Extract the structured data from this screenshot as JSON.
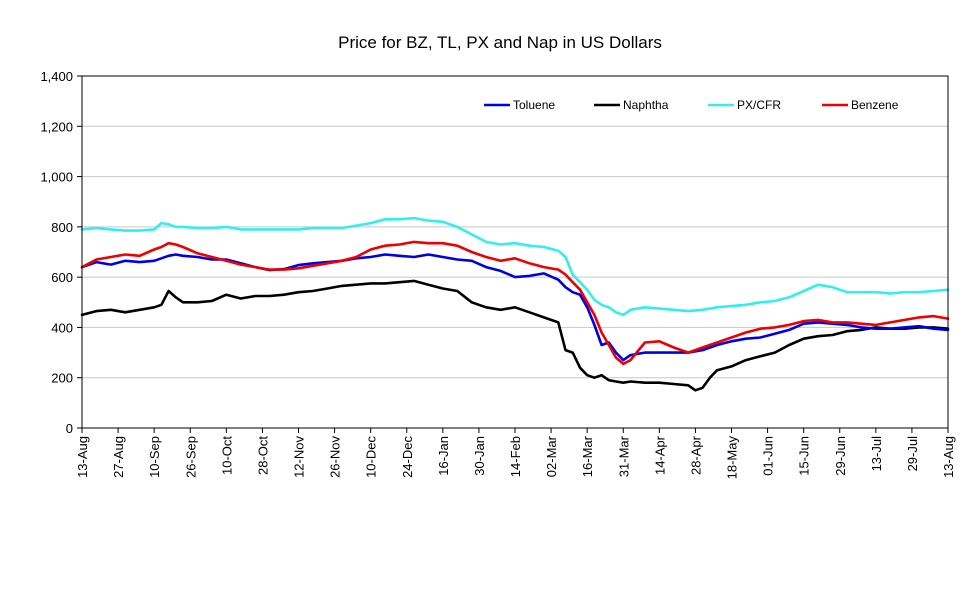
{
  "chart_data": {
    "type": "line",
    "title": "Price for BZ, TL, PX and Nap in US Dollars",
    "xlabel": "",
    "ylabel": "",
    "ylim": [
      0,
      1400
    ],
    "yticks": [
      "0",
      "200",
      "400",
      "600",
      "800",
      "1,000",
      "1,200",
      "1,400"
    ],
    "ytick_values": [
      0,
      200,
      400,
      600,
      800,
      1000,
      1200,
      1400
    ],
    "grid": true,
    "legend_position": "top-right",
    "x_tick_labels": [
      "13-Aug",
      "27-Aug",
      "10-Sep",
      "26-Sep",
      "10-Oct",
      "28-Oct",
      "12-Nov",
      "26-Nov",
      "10-Dec",
      "24-Dec",
      "16-Jan",
      "30-Jan",
      "14-Feb",
      "02-Mar",
      "16-Mar",
      "31-Mar",
      "14-Apr",
      "28-Apr",
      "18-May",
      "01-Jun",
      "15-Jun",
      "29-Jun",
      "13-Jul",
      "29-Jul",
      "13-Aug"
    ],
    "x": [
      0,
      10,
      20,
      30,
      40,
      50,
      60,
      70,
      80,
      90,
      100,
      110,
      120,
      130,
      140,
      150,
      160,
      170,
      180,
      190,
      200,
      210,
      220,
      230,
      240
    ],
    "series": [
      {
        "name": "Toluene",
        "color": "#0000e6",
        "x": [
          0,
          4,
          8,
          12,
          16,
          20,
          24,
          26,
          28,
          32,
          36,
          40,
          44,
          48,
          52,
          56,
          60,
          64,
          68,
          72,
          76,
          80,
          84,
          88,
          92,
          96,
          100,
          104,
          108,
          112,
          116,
          120,
          124,
          128,
          132,
          134,
          136,
          138,
          140,
          142,
          144,
          146,
          148,
          150,
          152,
          156,
          160,
          164,
          168,
          172,
          176,
          180,
          184,
          188,
          192,
          196,
          200,
          204,
          208,
          212,
          216,
          220,
          224,
          228,
          232,
          236,
          240
        ],
        "values": [
          640,
          660,
          650,
          665,
          660,
          665,
          685,
          690,
          685,
          680,
          670,
          670,
          655,
          640,
          628,
          632,
          648,
          655,
          660,
          665,
          675,
          680,
          690,
          685,
          680,
          690,
          680,
          670,
          665,
          640,
          625,
          600,
          605,
          615,
          590,
          560,
          540,
          530,
          480,
          410,
          330,
          340,
          300,
          270,
          290,
          300,
          300,
          300,
          300,
          310,
          330,
          345,
          355,
          360,
          375,
          390,
          415,
          420,
          415,
          410,
          400,
          395,
          395,
          400,
          405,
          395,
          390
        ]
      },
      {
        "name": "Naphtha",
        "color": "#000000",
        "x": [
          0,
          4,
          8,
          12,
          16,
          20,
          22,
          24,
          26,
          28,
          32,
          36,
          40,
          44,
          48,
          52,
          56,
          60,
          64,
          68,
          72,
          76,
          80,
          84,
          88,
          92,
          96,
          100,
          104,
          108,
          112,
          116,
          120,
          124,
          128,
          130,
          132,
          134,
          136,
          138,
          140,
          142,
          144,
          146,
          148,
          150,
          152,
          156,
          160,
          164,
          168,
          170,
          172,
          174,
          176,
          180,
          184,
          188,
          192,
          196,
          200,
          204,
          208,
          212,
          216,
          220,
          224,
          228,
          232,
          236,
          240
        ],
        "values": [
          450,
          465,
          470,
          460,
          470,
          480,
          490,
          545,
          520,
          500,
          500,
          505,
          530,
          515,
          525,
          525,
          530,
          540,
          545,
          555,
          565,
          570,
          575,
          575,
          580,
          585,
          570,
          555,
          545,
          500,
          480,
          470,
          480,
          460,
          440,
          430,
          420,
          310,
          300,
          240,
          210,
          200,
          210,
          190,
          185,
          180,
          185,
          180,
          180,
          175,
          170,
          150,
          160,
          200,
          230,
          245,
          270,
          285,
          300,
          330,
          355,
          365,
          370,
          385,
          390,
          400,
          395,
          395,
          400,
          400,
          395
        ]
      },
      {
        "name": "PX/CFR",
        "color": "#33eeee",
        "x": [
          0,
          4,
          8,
          12,
          16,
          20,
          22,
          24,
          26,
          28,
          32,
          36,
          40,
          44,
          48,
          52,
          56,
          60,
          64,
          68,
          72,
          76,
          80,
          84,
          88,
          92,
          96,
          100,
          104,
          108,
          112,
          116,
          120,
          124,
          128,
          132,
          134,
          136,
          138,
          140,
          142,
          144,
          146,
          148,
          150,
          152,
          156,
          160,
          164,
          168,
          172,
          176,
          180,
          184,
          188,
          192,
          196,
          200,
          204,
          208,
          212,
          216,
          220,
          224,
          228,
          232,
          236,
          240
        ],
        "values": [
          790,
          795,
          790,
          785,
          785,
          790,
          815,
          810,
          800,
          800,
          795,
          795,
          800,
          790,
          790,
          790,
          790,
          790,
          795,
          795,
          795,
          805,
          815,
          830,
          830,
          835,
          825,
          820,
          800,
          770,
          740,
          730,
          735,
          725,
          720,
          705,
          680,
          610,
          580,
          550,
          510,
          490,
          480,
          460,
          450,
          470,
          480,
          475,
          470,
          465,
          470,
          480,
          485,
          490,
          500,
          505,
          520,
          545,
          570,
          560,
          540,
          540,
          540,
          535,
          540,
          540,
          545,
          550
        ]
      },
      {
        "name": "Benzene",
        "color": "#ee0000",
        "x": [
          0,
          4,
          8,
          12,
          16,
          20,
          22,
          24,
          26,
          28,
          32,
          36,
          40,
          44,
          48,
          52,
          56,
          60,
          64,
          68,
          72,
          76,
          80,
          84,
          88,
          92,
          96,
          100,
          104,
          108,
          112,
          116,
          120,
          124,
          128,
          132,
          134,
          136,
          138,
          140,
          142,
          144,
          146,
          148,
          150,
          152,
          156,
          160,
          164,
          168,
          172,
          176,
          180,
          184,
          188,
          192,
          196,
          200,
          204,
          208,
          212,
          216,
          220,
          224,
          228,
          232,
          236,
          240
        ],
        "values": [
          640,
          670,
          680,
          690,
          685,
          710,
          720,
          735,
          730,
          720,
          695,
          680,
          665,
          650,
          640,
          630,
          630,
          635,
          645,
          655,
          665,
          680,
          710,
          725,
          730,
          740,
          735,
          735,
          725,
          700,
          680,
          665,
          675,
          655,
          640,
          630,
          610,
          580,
          550,
          500,
          450,
          380,
          330,
          280,
          255,
          270,
          340,
          345,
          320,
          300,
          320,
          340,
          360,
          380,
          395,
          400,
          410,
          425,
          430,
          420,
          420,
          415,
          410,
          420,
          430,
          440,
          445,
          435
        ]
      }
    ]
  }
}
